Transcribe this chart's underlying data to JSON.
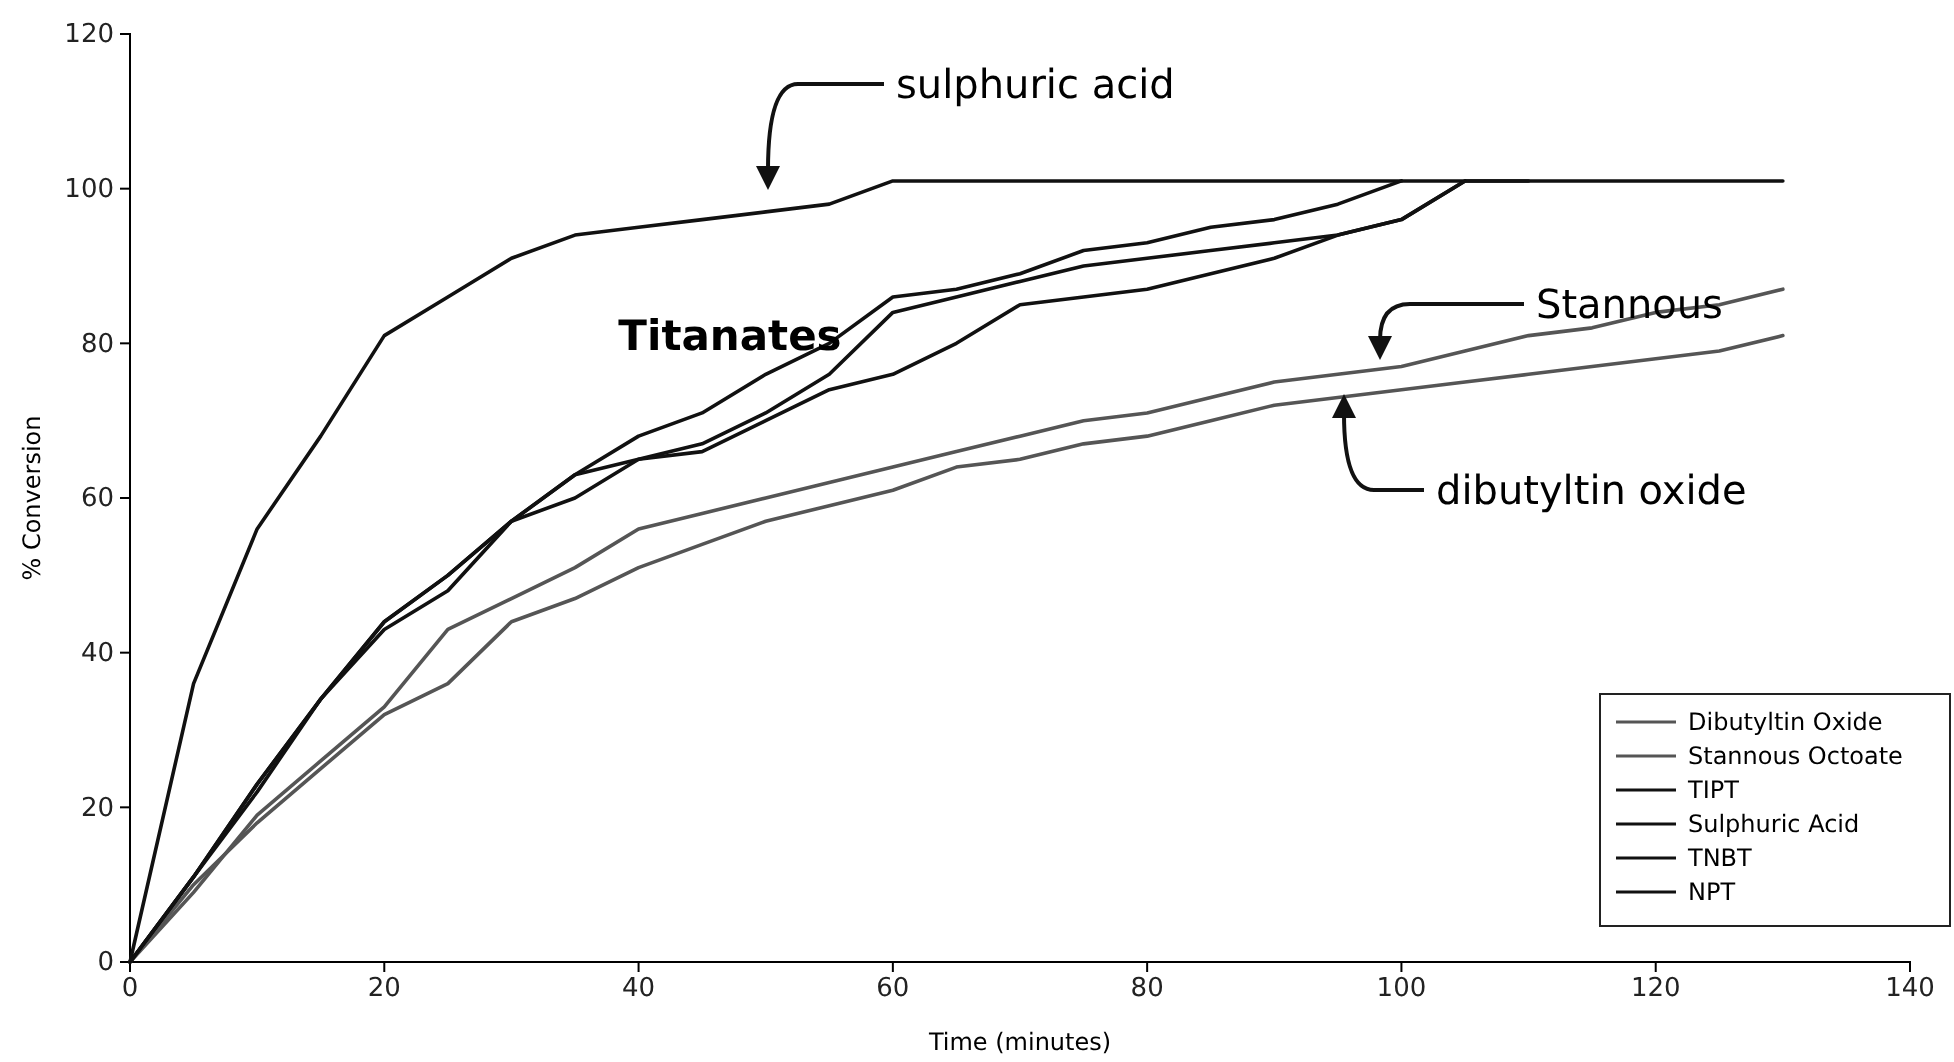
{
  "chart_data": {
    "type": "line",
    "xlabel": "Time (minutes)",
    "ylabel": "% Conversion",
    "x": [
      0,
      5,
      10,
      15,
      20,
      25,
      30,
      35,
      40,
      45,
      50,
      55,
      60,
      65,
      70,
      75,
      80,
      85,
      90,
      95,
      100,
      105,
      110,
      115,
      120,
      125,
      130
    ],
    "xlim": [
      0,
      140
    ],
    "xticks": [
      0,
      20,
      40,
      60,
      80,
      100,
      120,
      140
    ],
    "ylim": [
      0,
      120
    ],
    "yticks": [
      0,
      20,
      40,
      60,
      80,
      100,
      120
    ],
    "grid": false,
    "legend": "bottom right",
    "line_style": "solid",
    "series": [
      {
        "name": "Dibutyltin Oxide",
        "color": "#555555",
        "values": [
          0,
          10,
          18,
          25,
          32,
          36,
          44,
          47,
          51,
          54,
          57,
          59,
          61,
          64,
          65,
          67,
          68,
          70,
          72,
          73,
          74,
          75,
          76,
          77,
          78,
          79,
          81
        ]
      },
      {
        "name": "Stannous Octoate",
        "color": "#555555",
        "values": [
          0,
          9,
          19,
          26,
          33,
          43,
          47,
          51,
          56,
          58,
          60,
          62,
          64,
          66,
          68,
          70,
          71,
          73,
          75,
          76,
          77,
          79,
          81,
          82,
          84,
          85,
          87
        ]
      },
      {
        "name": "TIPT",
        "color": "#111111",
        "values": [
          0,
          11,
          23,
          34,
          44,
          50,
          57,
          63,
          68,
          71,
          76,
          80,
          86,
          87,
          89,
          92,
          93,
          95,
          96,
          98,
          101,
          null,
          null,
          null,
          null,
          null,
          null
        ]
      },
      {
        "name": "Sulphuric Acid",
        "color": "#111111",
        "values": [
          0,
          36,
          56,
          68,
          81,
          86,
          91,
          94,
          95,
          96,
          97,
          98,
          101,
          101,
          101,
          101,
          101,
          101,
          101,
          101,
          101,
          101,
          101,
          101,
          101,
          101,
          101
        ]
      },
      {
        "name": "TNBT",
        "color": "#111111",
        "values": [
          0,
          11,
          23,
          34,
          44,
          50,
          57,
          63,
          65,
          67,
          71,
          76,
          84,
          86,
          88,
          90,
          91,
          92,
          93,
          94,
          96,
          101,
          101,
          null,
          null,
          null,
          null
        ]
      },
      {
        "name": "NPT",
        "color": "#111111",
        "values": [
          0,
          11,
          22,
          34,
          43,
          48,
          57,
          60,
          65,
          66,
          70,
          74,
          76,
          80,
          85,
          86,
          87,
          89,
          91,
          94,
          96,
          101,
          null,
          null,
          null,
          null,
          null
        ]
      }
    ],
    "annotations": [
      "sulphuric acid",
      "Titanates",
      "Stannous",
      "dibutyltin oxide"
    ]
  }
}
